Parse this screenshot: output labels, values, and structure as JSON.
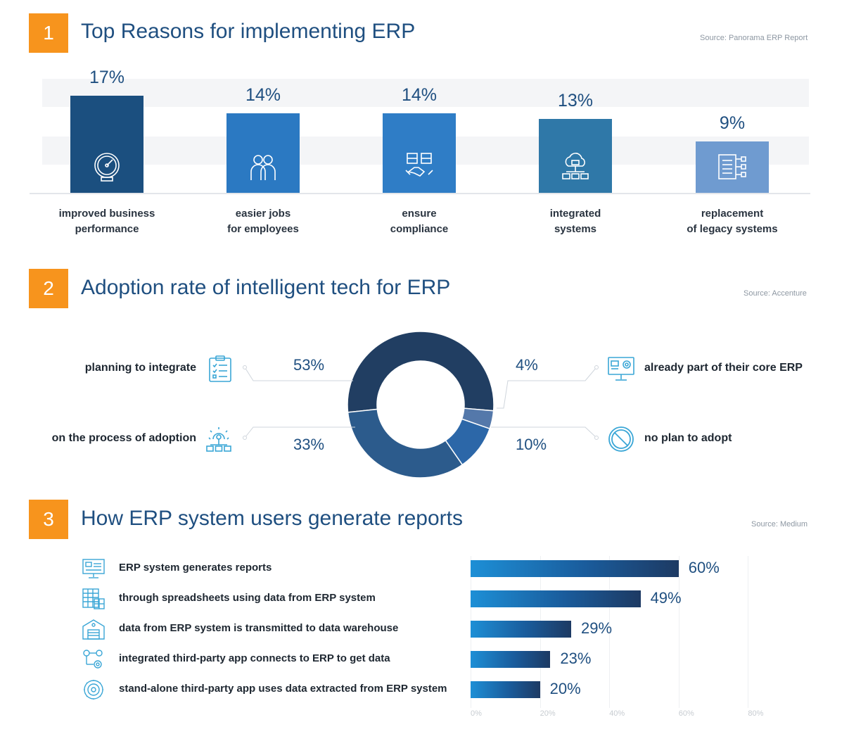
{
  "section1": {
    "number": "1",
    "title": "Top Reasons for implementing ERP",
    "source": "Source: Panorama ERP Report"
  },
  "section2": {
    "number": "2",
    "title": "Adoption rate of intelligent tech for ERP",
    "source": "Source: Accenture"
  },
  "section3": {
    "number": "3",
    "title": "How ERP system users generate reports",
    "source": "Source: Medium"
  },
  "chart_data": [
    {
      "type": "bar",
      "categories": [
        "improved business\nperformance",
        "easier jobs\nfor employees",
        "ensure\ncompliance",
        "integrated\nsystems",
        "replacement\nof legacy systems"
      ],
      "values": [
        17,
        14,
        14,
        13,
        9
      ],
      "value_labels": [
        "17%",
        "14%",
        "14%",
        "13%",
        "9%"
      ],
      "bar_colors": [
        "#1b4f7f",
        "#2b79c2",
        "#2f7dc6",
        "#2f78a8",
        "#6f9bd0"
      ],
      "icons": [
        "speedometer-icon",
        "employees-icon",
        "handshake-icon",
        "cloud-network-icon",
        "legacy-system-icon"
      ],
      "title": "Top Reasons for implementing ERP",
      "grid": false
    },
    {
      "type": "pie",
      "donut": true,
      "labels": [
        "planning to integrate",
        "already part of their core ERP",
        "no plan to adopt",
        "on the process of adoption"
      ],
      "values": [
        53,
        4,
        10,
        33
      ],
      "value_labels": [
        "53%",
        "4%",
        "10%",
        "33%"
      ],
      "colors": [
        "#213e62",
        "#5478aa",
        "#2c67a8",
        "#2c5b8c"
      ],
      "icons": [
        "clipboard-icon",
        "monitor-gear-icon",
        "no-entry-icon",
        "network-gear-icon"
      ],
      "title": "Adoption rate of intelligent tech for ERP"
    },
    {
      "type": "bar",
      "orientation": "horizontal",
      "categories": [
        "ERP system generates reports",
        "through spreadsheets using data from ERP system",
        "data from ERP system is transmitted to data warehouse",
        "integrated third-party app connects to ERP to get data",
        "stand-alone third-party app uses data extracted from ERP system"
      ],
      "values": [
        60,
        49,
        29,
        23,
        20
      ],
      "value_labels": [
        "60%",
        "49%",
        "29%",
        "23%",
        "20%"
      ],
      "icons": [
        "monitor-report-icon",
        "spreadsheet-icon",
        "warehouse-icon",
        "connection-icon",
        "gear-cycle-icon"
      ],
      "x_ticks": [
        "0%",
        "20%",
        "40%",
        "60%",
        "80%"
      ],
      "xlim": [
        0,
        80
      ],
      "title": "How ERP system users generate reports",
      "grid": true
    }
  ]
}
